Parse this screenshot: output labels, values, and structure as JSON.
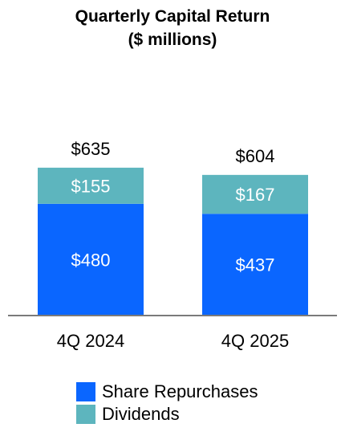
{
  "chart_data": {
    "type": "bar",
    "stacked": true,
    "title": [
      "Quarterly Capital Return",
      "($ millions)"
    ],
    "categories": [
      "4Q 2024",
      "4Q 2025"
    ],
    "series": [
      {
        "name": "Share Repurchases",
        "color": "#0a66ff",
        "values": [
          480,
          437
        ],
        "labels": [
          "$480",
          "$437"
        ]
      },
      {
        "name": "Dividends",
        "color": "#5db5be",
        "values": [
          155,
          167
        ],
        "labels": [
          "$155",
          "$167"
        ]
      }
    ],
    "totals": [
      635,
      604
    ],
    "total_labels": [
      "$635",
      "$604"
    ],
    "ylim": [
      0,
      800
    ],
    "grid": false,
    "legend_position": "bottom"
  }
}
